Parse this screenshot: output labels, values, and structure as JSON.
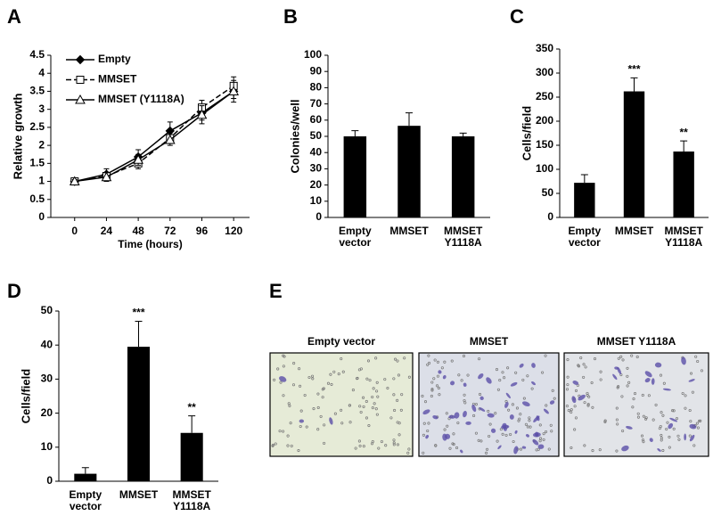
{
  "chart_data": [
    {
      "panel": "A",
      "type": "line",
      "x_label": "Time (hours)",
      "y_label": "Relative growth",
      "x": [
        0,
        24,
        48,
        72,
        96,
        120
      ],
      "xlim": [
        -18,
        132
      ],
      "xticks": [
        0,
        24,
        48,
        72,
        96,
        120
      ],
      "ylim": [
        0,
        4.5
      ],
      "yticks": [
        0,
        0.5,
        1,
        1.5,
        2,
        2.5,
        3,
        3.5,
        4,
        4.5
      ],
      "legend": "upper left",
      "series": [
        {
          "name": "Empty",
          "color": "#000000",
          "marker": "diamond",
          "filled": true,
          "dash": "solid",
          "values": [
            1,
            1.2,
            1.68,
            2.4,
            2.9,
            3.5
          ],
          "errors": [
            0.05,
            0.15,
            0.2,
            0.25,
            0.2,
            0.2
          ]
        },
        {
          "name": "MMSET",
          "color": "#000000",
          "marker": "square",
          "filled": false,
          "dash": "dashed",
          "values": [
            1,
            1.15,
            1.5,
            2.2,
            3.05,
            3.65
          ],
          "errors": [
            0.05,
            0.1,
            0.15,
            0.15,
            0.2,
            0.25
          ]
        },
        {
          "name": "MMSET (Y1118A)",
          "color": "#000000",
          "marker": "triangle",
          "filled": false,
          "dash": "solid",
          "values": [
            1,
            1.12,
            1.6,
            2.15,
            2.85,
            3.5
          ],
          "errors": [
            0.05,
            0.12,
            0.15,
            0.15,
            0.25,
            0.3
          ]
        }
      ]
    },
    {
      "panel": "B",
      "type": "bar",
      "y_label": "Colonies/well",
      "color": "#000000",
      "categories": [
        "Empty vector",
        "MMSET",
        "MMSET Y1118A"
      ],
      "values": [
        50,
        56.5,
        50
      ],
      "errors": [
        3.5,
        8,
        2
      ],
      "ylim": [
        0,
        100
      ],
      "yticks": [
        0,
        10,
        20,
        30,
        40,
        50,
        60,
        70,
        80,
        90,
        100
      ]
    },
    {
      "panel": "C",
      "type": "bar",
      "y_label": "Cells/field",
      "color": "#000000",
      "categories": [
        "Empty vector",
        "MMSET",
        "MMSET Y1118A"
      ],
      "values": [
        72,
        262,
        137
      ],
      "errors": [
        17,
        28,
        22
      ],
      "annotations": [
        null,
        "***",
        "**"
      ],
      "ylim": [
        0,
        350
      ],
      "yticks": [
        0,
        50,
        100,
        150,
        200,
        250,
        300,
        350
      ]
    },
    {
      "panel": "D",
      "type": "bar",
      "y_label": "Cells/field",
      "color": "#000000",
      "categories": [
        "Empty vector",
        "MMSET",
        "MMSET Y1118A"
      ],
      "values": [
        2.2,
        39.5,
        14.2
      ],
      "errors": [
        1.8,
        7.5,
        5
      ],
      "annotations": [
        null,
        "***",
        "**"
      ],
      "ylim": [
        0,
        50
      ],
      "yticks": [
        0,
        10,
        20,
        30,
        40,
        50
      ]
    }
  ],
  "panel_e": {
    "label": "E",
    "images": [
      "Empty vector",
      "MMSET",
      "MMSET Y1118A"
    ]
  }
}
